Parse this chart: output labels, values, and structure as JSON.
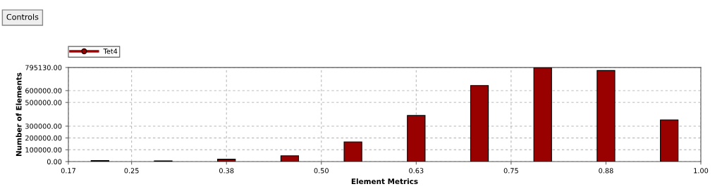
{
  "chart_data": {
    "type": "histogram",
    "xlabel": "Element Metrics",
    "ylabel": "Number of Elements",
    "annotations": [
      "Controls"
    ],
    "bins": [
      0.1667,
      0.25,
      0.3333,
      0.4167,
      0.5,
      0.5833,
      0.6667,
      0.75,
      0.8333,
      0.9167,
      1.0
    ],
    "series": [
      {
        "name": "Tet4",
        "color": "#990000",
        "values": [
          8000,
          6000,
          20000,
          49000,
          166000,
          390000,
          643000,
          795130,
          770000,
          352000
        ]
      }
    ],
    "xlim": [
      0.1667,
      1.0
    ],
    "xticks": [
      {
        "value": 0.1667,
        "label": "0.17"
      },
      {
        "value": 0.25,
        "label": "0.25"
      },
      {
        "value": 0.375,
        "label": "0.38"
      },
      {
        "value": 0.5,
        "label": "0.50"
      },
      {
        "value": 0.625,
        "label": "0.63"
      },
      {
        "value": 0.75,
        "label": "0.75"
      },
      {
        "value": 0.875,
        "label": "0.88"
      },
      {
        "value": 1.0,
        "label": "1.00"
      }
    ],
    "ylim": [
      0,
      795130
    ],
    "yticks": [
      {
        "value": 0,
        "label": "0.00"
      },
      {
        "value": 100000,
        "label": "100000.00"
      },
      {
        "value": 200000,
        "label": "200000.00"
      },
      {
        "value": 300000,
        "label": "300000.00"
      },
      {
        "value": 500000,
        "label": "500000.00"
      },
      {
        "value": 600000,
        "label": "600000.00"
      },
      {
        "value": 795130,
        "label": "795130.00"
      }
    ],
    "grid": true,
    "legend": "top left"
  }
}
